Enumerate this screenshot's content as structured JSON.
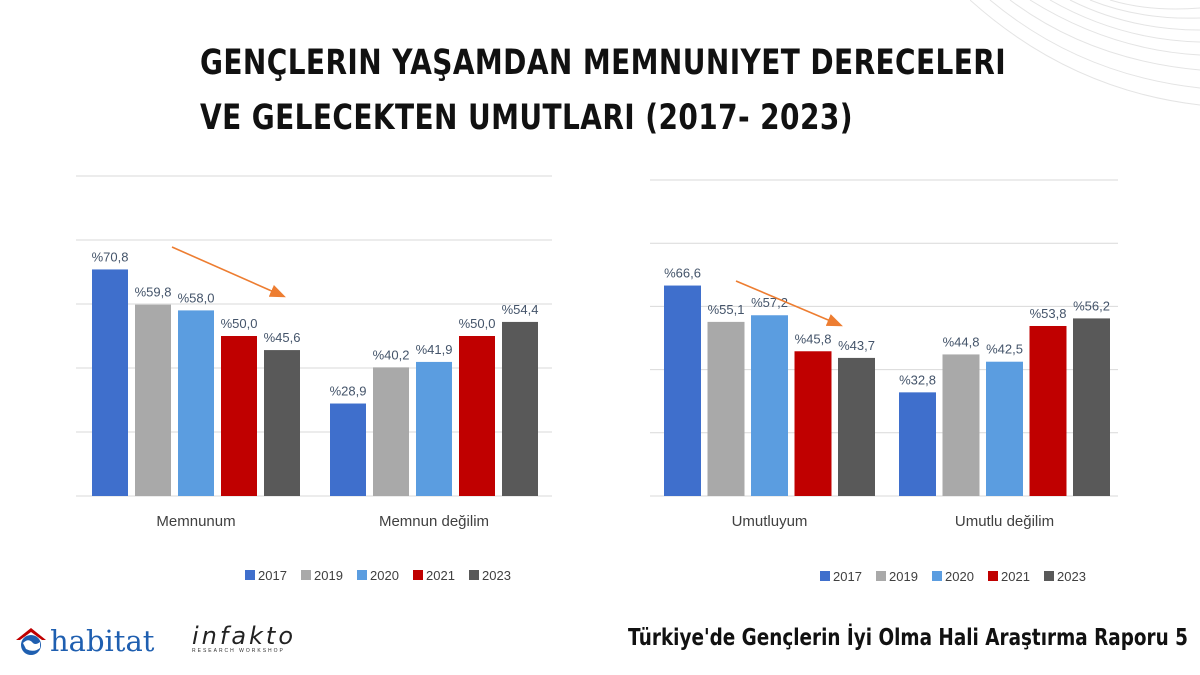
{
  "title_lines": [
    "Gençlerin Yaşamdan Memnuniyet Dereceleri",
    "ve Gelecekten Umutları (2017- 2023)"
  ],
  "footer_title": "Türkiye'de Gençlerin İyi Olma Hali Araştırma Raporu 5",
  "logos": {
    "left_text": "habitat",
    "right_text": "infakto",
    "right_subtext": "RESEARCH WORKSHOP"
  },
  "colors": {
    "2017": "#3f6fcc",
    "2019": "#a9a9a9",
    "2020": "#5b9de0",
    "2021": "#c00000",
    "2023": "#595959",
    "arrow": "#ed7d31",
    "grid": "#d9d9d9",
    "label": "#44546a"
  },
  "chart_data": [
    {
      "type": "bar",
      "categories": [
        "Memnunum",
        "Memnun değilim"
      ],
      "series": [
        {
          "name": "2017",
          "values": [
            70.8,
            28.9
          ],
          "labels": [
            "%70,8",
            "%28,9"
          ]
        },
        {
          "name": "2019",
          "values": [
            59.8,
            40.2
          ],
          "labels": [
            "%59,8",
            "%40,2"
          ]
        },
        {
          "name": "2020",
          "values": [
            58.0,
            41.9
          ],
          "labels": [
            "%58,0",
            "%41,9"
          ]
        },
        {
          "name": "2021",
          "values": [
            50.0,
            50.0
          ],
          "labels": [
            "%50,0",
            "%50,0"
          ]
        },
        {
          "name": "2023",
          "values": [
            45.6,
            54.4
          ],
          "labels": [
            "%45,6",
            "%54,4"
          ]
        }
      ],
      "ylim": [
        0,
        100
      ],
      "grid": true,
      "legend": "bottom",
      "annotation": "downward trend arrow over first group"
    },
    {
      "type": "bar",
      "categories": [
        "Umutluyum",
        "Umutlu değilim"
      ],
      "series": [
        {
          "name": "2017",
          "values": [
            66.6,
            32.8
          ],
          "labels": [
            "%66,6",
            "%32,8"
          ]
        },
        {
          "name": "2019",
          "values": [
            55.1,
            44.8
          ],
          "labels": [
            "%55,1",
            "%44,8"
          ]
        },
        {
          "name": "2020",
          "values": [
            57.2,
            42.5
          ],
          "labels": [
            "%57,2",
            "%42,5"
          ]
        },
        {
          "name": "2021",
          "values": [
            45.8,
            53.8
          ],
          "labels": [
            "%45,8",
            "%53,8"
          ]
        },
        {
          "name": "2023",
          "values": [
            43.7,
            56.2
          ],
          "labels": [
            "%43,7",
            "%56,2"
          ]
        }
      ],
      "ylim": [
        0,
        100
      ],
      "grid": true,
      "legend": "bottom",
      "annotation": "downward trend arrow over first group"
    }
  ]
}
